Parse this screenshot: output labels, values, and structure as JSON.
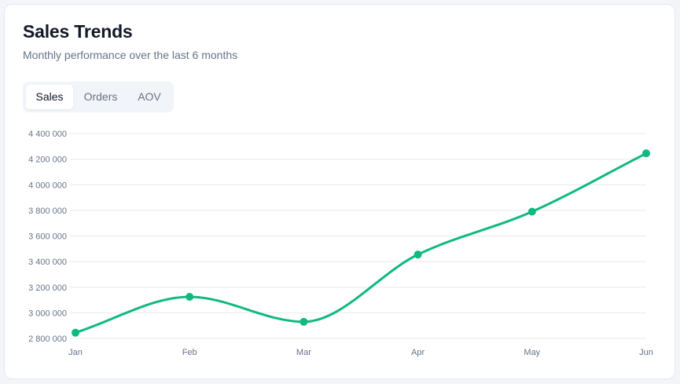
{
  "card": {
    "title": "Sales Trends",
    "subtitle": "Monthly performance over the last 6 months"
  },
  "tabs": [
    {
      "label": "Sales",
      "active": true
    },
    {
      "label": "Orders",
      "active": false
    },
    {
      "label": "AOV",
      "active": false
    }
  ],
  "colors": {
    "line": "#10b981",
    "grid": "#e5e9f0",
    "axis_text": "#64748b",
    "title": "#111827",
    "subtitle": "#64748b"
  },
  "y_ticks": [
    "4 400 000",
    "4 200 000",
    "4 000 000",
    "3 800 000",
    "3 600 000",
    "3 400 000",
    "3 200 000",
    "3 000 000",
    "2 800 000"
  ],
  "x_ticks": [
    "Jan",
    "Feb",
    "Mar",
    "Apr",
    "May",
    "Jun"
  ],
  "chart_data": {
    "type": "line",
    "title": "Sales Trends",
    "subtitle": "Monthly performance over the last 6 months",
    "categories": [
      "Jan",
      "Feb",
      "Mar",
      "Apr",
      "May",
      "Jun"
    ],
    "series": [
      {
        "name": "Sales",
        "values": [
          2845000,
          3125000,
          2930000,
          3455000,
          3790000,
          4245000
        ],
        "color": "#10b981"
      }
    ],
    "xlabel": "",
    "ylabel": "",
    "ylim": [
      2800000,
      4400000
    ],
    "yticks": [
      2800000,
      3000000,
      3200000,
      3400000,
      3600000,
      3800000,
      4000000,
      4200000,
      4400000
    ],
    "grid": true,
    "legend": "none",
    "curve": "smooth",
    "markers": true
  }
}
